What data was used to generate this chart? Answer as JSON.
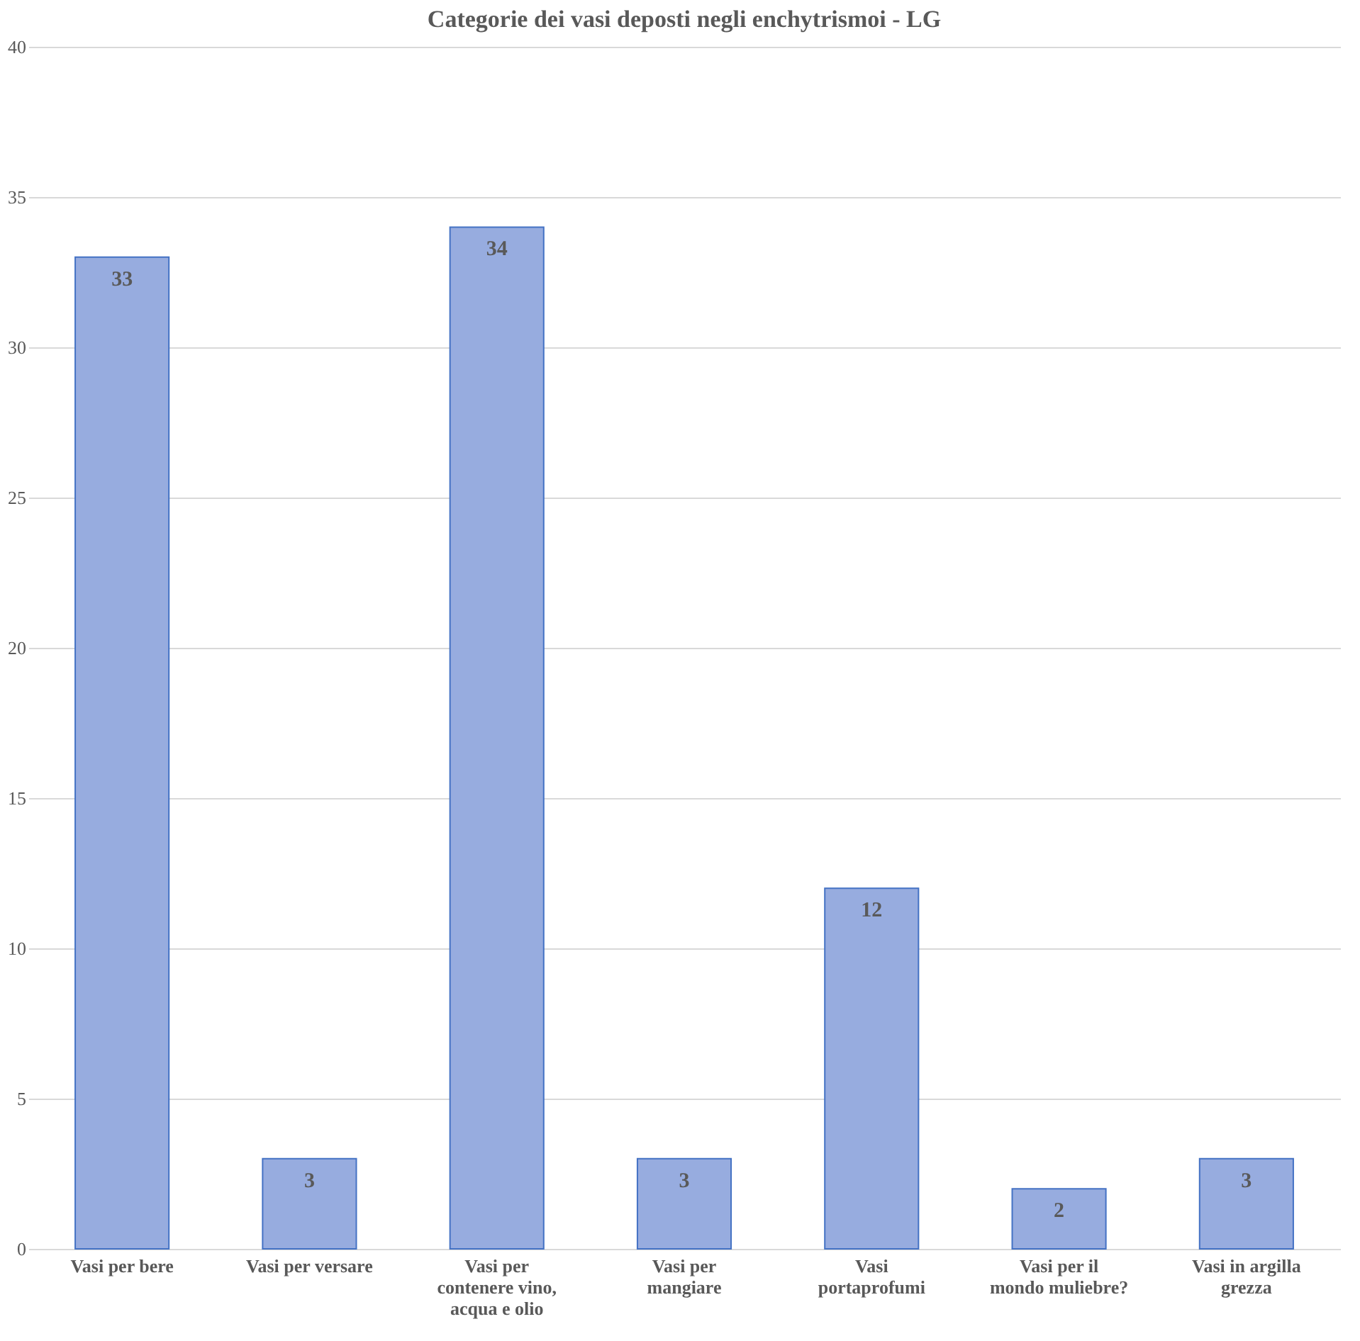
{
  "chart_data": {
    "type": "bar",
    "title": "Categorie dei vasi deposti negli enchytrismoi - LG",
    "categories": [
      "Vasi per bere",
      "Vasi per versare",
      "Vasi per contenere vino, acqua e olio",
      "Vasi per mangiare",
      "Vasi portaprofumi",
      "Vasi per il mondo muliebre?",
      "Vasi in argilla grezza"
    ],
    "values": [
      33,
      3,
      34,
      3,
      12,
      2,
      3
    ],
    "color": "#97acdf",
    "ylim": [
      0,
      40
    ],
    "yticks": [
      0,
      5,
      10,
      15,
      20,
      25,
      30,
      35,
      40
    ],
    "grid": "y",
    "data_labels": true
  }
}
